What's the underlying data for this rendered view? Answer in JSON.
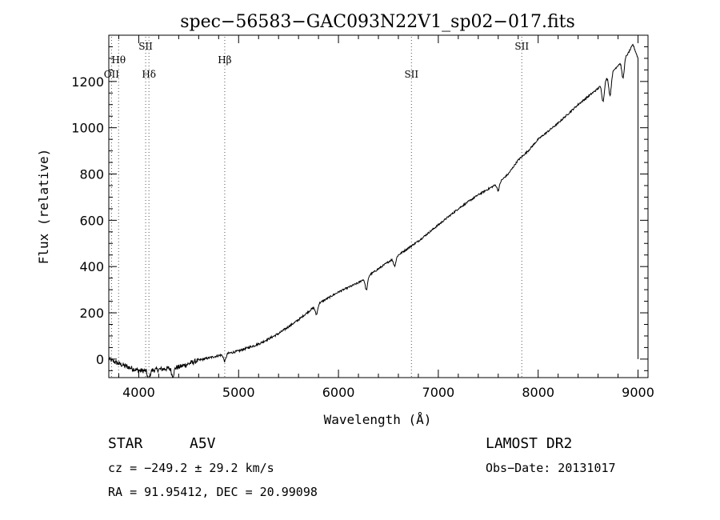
{
  "chart_data": {
    "type": "line",
    "title": "spec−56583−GAC093N22V1_sp02−017.fits",
    "xlabel": "Wavelength (Å)",
    "ylabel": "Flux (relative)",
    "xlim": [
      3700,
      9100
    ],
    "ylim": [
      -80,
      1400
    ],
    "x_ticks": [
      4000,
      5000,
      6000,
      7000,
      8000,
      9000
    ],
    "y_ticks": [
      0,
      200,
      400,
      600,
      800,
      1000,
      1200
    ],
    "x_minor_step": 200,
    "y_minor_step": 50,
    "grid": false,
    "series": [
      {
        "color": "#000000",
        "x": [
          3700,
          3800,
          3900,
          4000,
          4100,
          4200,
          4300,
          4400,
          4500,
          4600,
          4700,
          4800,
          4900,
          5000,
          5200,
          5400,
          5600,
          5800,
          6000,
          6200,
          6400,
          6600,
          6800,
          7000,
          7200,
          7400,
          7600,
          7700,
          7800,
          7900,
          8000,
          8200,
          8400,
          8600,
          8700,
          8800,
          8900,
          8950,
          9000
        ],
        "y": [
          0,
          -20,
          -35,
          -50,
          -50,
          -45,
          -40,
          -35,
          -20,
          -5,
          5,
          15,
          25,
          35,
          65,
          110,
          170,
          240,
          290,
          330,
          390,
          450,
          510,
          580,
          650,
          710,
          760,
          800,
          860,
          900,
          950,
          1020,
          1100,
          1170,
          1220,
          1270,
          1320,
          1360,
          1300
        ]
      }
    ],
    "absorption_dips": [
      {
        "x": 4100,
        "depth": 40
      },
      {
        "x": 4340,
        "depth": 35
      },
      {
        "x": 4861,
        "depth": 30
      },
      {
        "x": 5780,
        "depth": 40
      },
      {
        "x": 6280,
        "depth": 55
      },
      {
        "x": 6563,
        "depth": 35
      },
      {
        "x": 7600,
        "depth": 30
      },
      {
        "x": 8650,
        "depth": 80
      },
      {
        "x": 8720,
        "depth": 90
      },
      {
        "x": 8850,
        "depth": 80
      }
    ],
    "line_markers": [
      {
        "label": "OII",
        "wavelength": 3727,
        "row": 3
      },
      {
        "label": "Hθ",
        "wavelength": 3798,
        "row": 2
      },
      {
        "label": "SII",
        "wavelength": 4069,
        "row": 1
      },
      {
        "label": "Hδ",
        "wavelength": 4102,
        "row": 3
      },
      {
        "label": "Hβ",
        "wavelength": 4861,
        "row": 2
      },
      {
        "label": "SII",
        "wavelength": 6731,
        "row": 3
      },
      {
        "label": "SII",
        "wavelength": 7836,
        "row": 1
      }
    ]
  },
  "info": {
    "object_class": "STAR",
    "subclass": "A5V",
    "survey": "LAMOST DR2",
    "redshift": "cz = −249.2 ± 29.2 km/s",
    "obs_date": "Obs−Date: 20131017",
    "coords": "RA =  91.95412, DEC =  20.99098"
  }
}
